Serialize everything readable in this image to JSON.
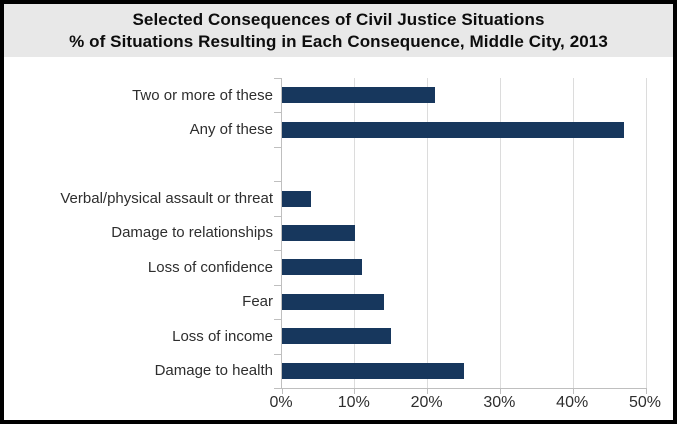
{
  "title": {
    "line1": "Selected Consequences of Civil Justice Situations",
    "line2": "% of Situations Resulting in Each Consequence, Middle City, 2013"
  },
  "chart_data": {
    "type": "bar",
    "orientation": "horizontal",
    "title": "Selected Consequences of Civil Justice Situations",
    "subtitle": "% of Situations Resulting in Each Consequence, Middle City, 2013",
    "categories": [
      "Two or more of these",
      "Any of these",
      "",
      "Verbal/physical assault or threat",
      "Damage to relationships",
      "Loss of confidence",
      "Fear",
      "Loss of income",
      "Damage to health"
    ],
    "values": [
      21,
      47,
      null,
      4,
      10,
      11,
      14,
      15,
      25
    ],
    "x_tick_labels": [
      "0%",
      "10%",
      "20%",
      "30%",
      "40%",
      "50%"
    ],
    "x_tick_values": [
      0,
      10,
      20,
      30,
      40,
      50
    ],
    "xlim": [
      0,
      50
    ],
    "grid": true,
    "legend": "none",
    "colors": {
      "bar": "#17375d",
      "gridline": "#dcdcdc",
      "axis": "#bfbfbf",
      "title_background": "#e8e8e8",
      "label_text": "#2e2e2e"
    }
  }
}
